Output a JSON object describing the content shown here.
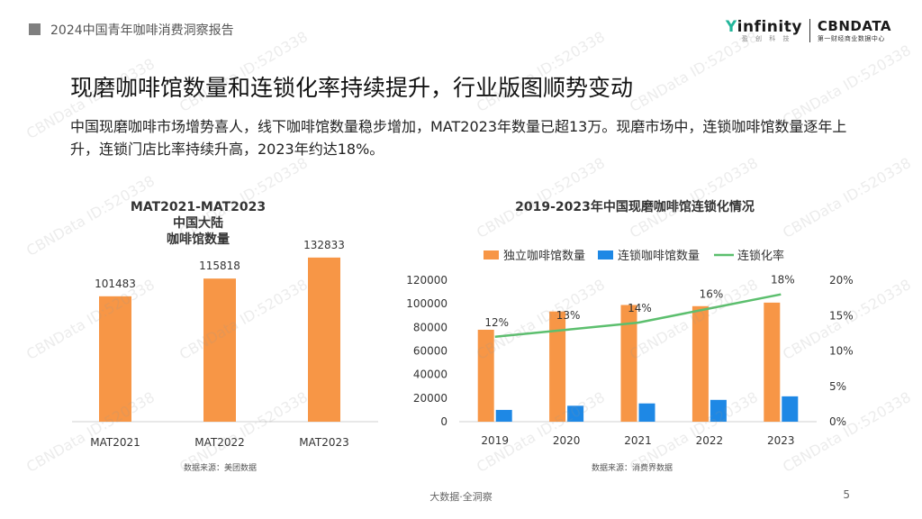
{
  "header": {
    "report_title": "2024中国青年咖啡消费洞察报告",
    "logo_infinity": "infinity",
    "logo_infinity_y": "Y",
    "logo_infinity_sub": "盈 创 科 技",
    "logo_cbn": "CBNDATA",
    "logo_cbn_sub": "第一财经商业数据中心"
  },
  "slide": {
    "title": "现磨咖啡馆数量和连锁化率持续提升，行业版图顺势变动",
    "description": "中国现磨咖啡市场增势喜人，线下咖啡馆数量稳步增加，MAT2023年数量已超13万。现磨市场中，连锁咖啡馆数量逐年上升，连锁门店比率持续升高，2023年约达18%。"
  },
  "left_chart": {
    "title_line1": "MAT2021-MAT2023中国大陆",
    "title_line2": "咖啡馆数量",
    "source": "数据来源：美团数据"
  },
  "right_chart": {
    "title": "2019-2023年中国现磨咖啡馆连锁化情况",
    "source": "数据来源：消费界数据"
  },
  "chart_data": [
    {
      "type": "bar",
      "title": "MAT2021-MAT2023中国大陆咖啡馆数量",
      "categories": [
        "MAT2021",
        "MAT2022",
        "MAT2023"
      ],
      "values": [
        101483,
        115818,
        132833
      ],
      "data_labels": [
        "101483",
        "115818",
        "132833"
      ],
      "color": "#f79646",
      "grid": false
    },
    {
      "type": "bar",
      "title": "2019-2023年中国现磨咖啡馆连锁化情况",
      "categories": [
        "2019",
        "2020",
        "2021",
        "2022",
        "2023"
      ],
      "series": [
        {
          "name": "独立咖啡馆数量",
          "type": "bar",
          "axis": "left",
          "color": "#f79646",
          "values": [
            78000,
            93500,
            99000,
            98000,
            101000
          ]
        },
        {
          "name": "连锁咖啡馆数量",
          "type": "bar",
          "axis": "left",
          "color": "#1e88e5",
          "values": [
            10000,
            13500,
            15500,
            18500,
            21500
          ]
        },
        {
          "name": "连锁化率",
          "type": "line",
          "axis": "right",
          "color": "#5cbf6e",
          "values": [
            12,
            13,
            14,
            16,
            18
          ],
          "data_labels": [
            "12%",
            "13%",
            "14%",
            "16%",
            "18%"
          ]
        }
      ],
      "ylim": [
        0,
        120000
      ],
      "yticks": [
        "0",
        "20000",
        "40000",
        "60000",
        "80000",
        "100000",
        "120000"
      ],
      "y2lim": [
        0,
        20
      ],
      "y2ticks": [
        "0%",
        "5%",
        "10%",
        "15%",
        "20%"
      ],
      "legend_position": "top",
      "grid": false
    }
  ],
  "footer": {
    "center": "大数据·全洞察",
    "page": "5"
  },
  "watermark_text": "CBNData ID:520338"
}
